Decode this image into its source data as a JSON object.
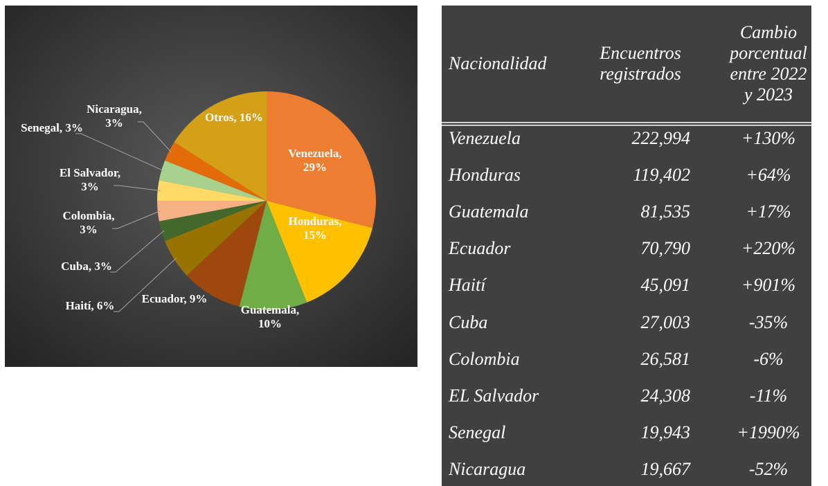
{
  "chart_data": {
    "type": "pie",
    "categories": [
      "Venezuela",
      "Honduras",
      "Guatemala",
      "Ecuador",
      "Haití",
      "Cuba",
      "Colombia",
      "El Salvador",
      "Senegal",
      "Nicaragua",
      "Otros"
    ],
    "values": [
      29,
      15,
      10,
      9,
      6,
      3,
      3,
      3,
      3,
      3,
      16
    ],
    "value_labels": [
      "Venezuela, 29%",
      "Honduras, 15%",
      "Guatemala, 10%",
      "Ecuador, 9%",
      "Haití, 6%",
      "Cuba, 3%",
      "Colombia, 3%",
      "El Salvador, 3%",
      "Senegal, 3%",
      "Nicaragua, 3%",
      "Otros, 16%"
    ],
    "colors": [
      "#ed7d31",
      "#ffc000",
      "#70ad47",
      "#9e480e",
      "#997300",
      "#43682b",
      "#f4b183",
      "#ffd966",
      "#a9d18e",
      "#e36c09",
      "#d4a017"
    ]
  },
  "table": {
    "header": [
      "Nacionalidad",
      "Encuentros registrados",
      "Cambio porcentual entre 2022 y 2023"
    ],
    "rows": [
      [
        "Venezuela",
        "222,994",
        "+130%"
      ],
      [
        "Honduras",
        "119,402",
        "+64%"
      ],
      [
        "Guatemala",
        "81,535",
        "+17%"
      ],
      [
        "Ecuador",
        "70,790",
        "+220%"
      ],
      [
        "Haití",
        "45,091",
        "+901%"
      ],
      [
        "Cuba",
        "27,003",
        "-35%"
      ],
      [
        "Colombia",
        "26,581",
        "-6%"
      ],
      [
        "EL Salvador",
        "24,308",
        "-11%"
      ],
      [
        "Senegal",
        "19,943",
        "+1990%"
      ],
      [
        "Nicaragua",
        "19,667",
        "-52%"
      ]
    ]
  }
}
